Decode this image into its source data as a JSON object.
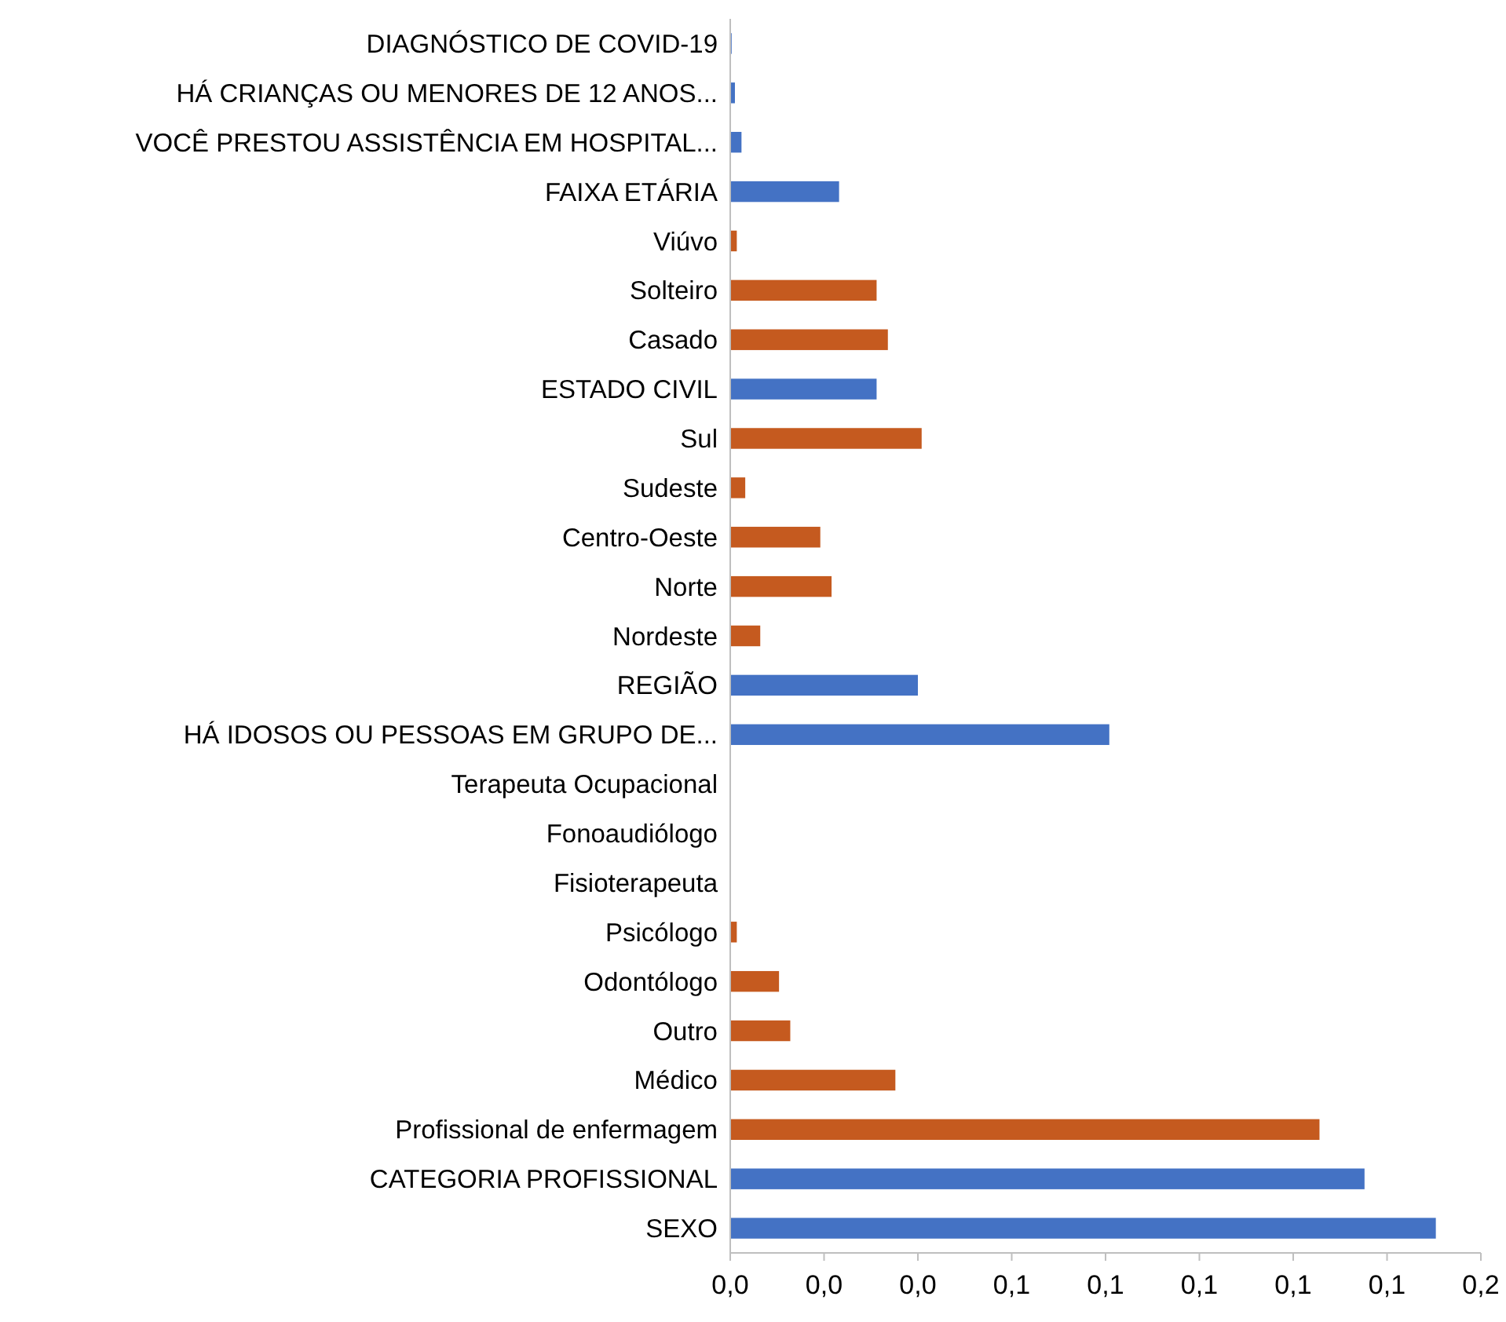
{
  "chart_data": {
    "type": "bar",
    "orientation": "horizontal",
    "categories": [
      "DIAGNÓSTICO DE COVID-19",
      "HÁ CRIANÇAS OU MENORES DE 12 ANOS...",
      "VOCÊ PRESTOU ASSISTÊNCIA EM HOSPITAL...",
      "FAIXA ETÁRIA",
      "Viúvo",
      "Solteiro",
      "Casado",
      "ESTADO CIVIL",
      "Sul",
      "Sudeste",
      "Centro-Oeste",
      "Norte",
      "Nordeste",
      "REGIÃO",
      "HÁ IDOSOS OU PESSOAS EM GRUPO DE...",
      "Terapeuta Ocupacional",
      "Fonoaudiólogo",
      "Fisioterapeuta",
      "Psicólogo",
      "Odontólogo",
      "Outro",
      "Médico",
      "Profissional de enfermagem",
      "CATEGORIA PROFISSIONAL",
      "SEXO"
    ],
    "values": [
      0.0003,
      0.001,
      0.0024,
      0.0232,
      0.0014,
      0.0312,
      0.0336,
      0.0312,
      0.0408,
      0.0032,
      0.0192,
      0.0216,
      0.0064,
      0.04,
      0.0808,
      0,
      0,
      0,
      0.0014,
      0.0104,
      0.0128,
      0.0352,
      0.1256,
      0.1352,
      0.1504
    ],
    "colors": [
      "#4472c4",
      "#4472c4",
      "#4472c4",
      "#4472c4",
      "#c55a1f",
      "#c55a1f",
      "#c55a1f",
      "#4472c4",
      "#c55a1f",
      "#c55a1f",
      "#c55a1f",
      "#c55a1f",
      "#c55a1f",
      "#4472c4",
      "#4472c4",
      "#c55a1f",
      "#c55a1f",
      "#c55a1f",
      "#c55a1f",
      "#c55a1f",
      "#c55a1f",
      "#c55a1f",
      "#c55a1f",
      "#4472c4",
      "#4472c4"
    ],
    "xlim": [
      0,
      0.16
    ],
    "xticks": [
      {
        "value": 0,
        "label": "0,0"
      },
      {
        "value": 0.02,
        "label": "0,0"
      },
      {
        "value": 0.04,
        "label": "0,0"
      },
      {
        "value": 0.06,
        "label": "0,1"
      },
      {
        "value": 0.08,
        "label": "0,1"
      },
      {
        "value": 0.1,
        "label": "0,1"
      },
      {
        "value": 0.12,
        "label": "0,1"
      },
      {
        "value": 0.14,
        "label": "0,1"
      },
      {
        "value": 0.16,
        "label": "0,2"
      }
    ],
    "grid": false
  }
}
